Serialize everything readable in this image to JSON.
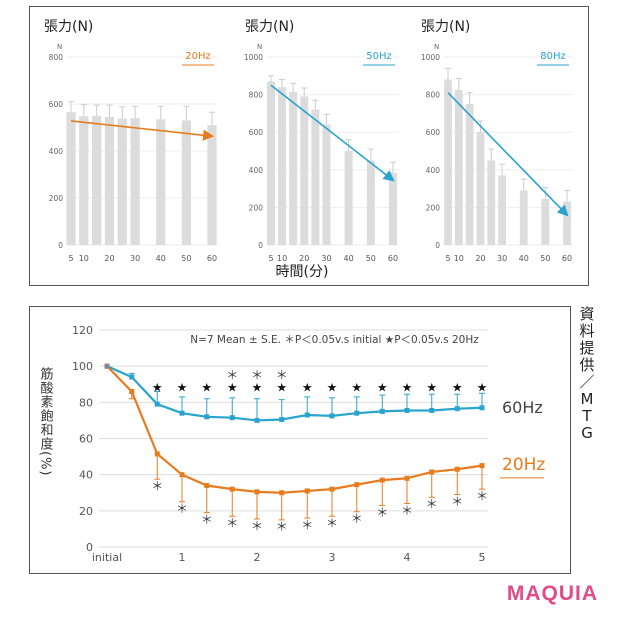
{
  "colors": {
    "orange": "#e87b1e",
    "blue": "#2aa3cf",
    "bar": "#dcdcdc",
    "grid": "#cccccc"
  },
  "top": {
    "xlabel": "時間(分)",
    "panels": [
      {
        "title": "張力(N)",
        "unit": "N",
        "freq": "20Hz",
        "color": "#e87b1e"
      },
      {
        "title": "張力(N)",
        "unit": "N",
        "freq": "50Hz",
        "color": "#2aa3cf"
      },
      {
        "title": "張力(N)",
        "unit": "N",
        "freq": "80Hz",
        "color": "#2aa3cf"
      }
    ]
  },
  "bottom": {
    "legend_note": "N=7  Mean ± S.E.  ＊P＜0.05v.s initial  ★P＜0.05v.s 20Hz",
    "ylabel": "筋酸素飽和度(%)",
    "series_labels": [
      "60Hz",
      "20Hz"
    ]
  },
  "credit": "資料提供／MTG",
  "brand": "MAQUIA",
  "chart_data": [
    {
      "type": "bar",
      "title": "張力(N)",
      "series_label": "20Hz",
      "x": [
        5,
        10,
        15,
        20,
        25,
        30,
        40,
        50,
        60
      ],
      "tick_labels": [
        "5",
        "10",
        "20",
        "30",
        "40",
        "50",
        "60"
      ],
      "tick_values": [
        5,
        10,
        20,
        30,
        40,
        50,
        60
      ],
      "values": [
        565,
        548,
        550,
        545,
        538,
        540,
        535,
        530,
        510
      ],
      "errors": [
        45,
        50,
        45,
        50,
        50,
        50,
        55,
        60,
        55
      ],
      "trend": [
        528,
        463
      ],
      "ylim": [
        0,
        800
      ],
      "yticks": [
        0,
        200,
        400,
        600,
        800
      ]
    },
    {
      "type": "bar",
      "title": "張力(N)",
      "series_label": "50Hz",
      "x": [
        5,
        10,
        15,
        20,
        25,
        30,
        40,
        50,
        60
      ],
      "tick_labels": [
        "5",
        "10",
        "20",
        "30",
        "40",
        "50",
        "60"
      ],
      "tick_values": [
        5,
        10,
        20,
        30,
        40,
        50,
        60
      ],
      "values": [
        870,
        840,
        815,
        790,
        720,
        640,
        500,
        450,
        385
      ],
      "errors": [
        30,
        40,
        45,
        45,
        50,
        55,
        60,
        60,
        55
      ],
      "trend": [
        850,
        345
      ],
      "ylim": [
        0,
        1000
      ],
      "yticks": [
        0,
        200,
        400,
        600,
        800,
        1000
      ]
    },
    {
      "type": "bar",
      "title": "張力(N)",
      "series_label": "80Hz",
      "x": [
        5,
        10,
        15,
        20,
        25,
        30,
        40,
        50,
        60
      ],
      "tick_labels": [
        "5",
        "10",
        "20",
        "30",
        "40",
        "50",
        "60"
      ],
      "tick_values": [
        5,
        10,
        20,
        30,
        40,
        50,
        60
      ],
      "values": [
        880,
        825,
        750,
        600,
        450,
        370,
        290,
        245,
        230
      ],
      "errors": [
        60,
        60,
        60,
        60,
        60,
        60,
        60,
        60,
        60
      ],
      "trend": [
        810,
        160
      ],
      "ylim": [
        0,
        1000
      ],
      "yticks": [
        0,
        200,
        400,
        600,
        800,
        1000
      ]
    },
    {
      "type": "line",
      "xlim": [
        0,
        5
      ],
      "x_tick_labels": [
        "initial",
        "1",
        "2",
        "3",
        "4",
        "5"
      ],
      "x_tick_values": [
        0,
        1,
        2,
        3,
        4,
        5
      ],
      "ylim": [
        0,
        120
      ],
      "yticks": [
        0,
        20,
        40,
        60,
        80,
        100,
        120
      ],
      "x": [
        0,
        0.33,
        0.67,
        1.0,
        1.33,
        1.67,
        2.0,
        2.33,
        2.67,
        3.0,
        3.33,
        3.67,
        4.0,
        4.33,
        4.67,
        5.0
      ],
      "series": [
        {
          "name": "60Hz",
          "color": "#2aa3cf",
          "values": [
            100,
            94,
            79,
            74,
            72,
            71.5,
            70,
            70.5,
            73,
            72.5,
            74,
            75,
            75.5,
            75.5,
            76.5,
            77
          ],
          "errors": [
            0,
            2,
            7,
            9,
            10,
            11,
            12,
            11,
            10,
            10,
            9,
            9,
            9,
            9,
            8,
            8
          ]
        },
        {
          "name": "20Hz",
          "color": "#e87b1e",
          "values": [
            100,
            86,
            51.5,
            40,
            34,
            32,
            30.5,
            30,
            31,
            32,
            34.5,
            37,
            38,
            41.5,
            43,
            45
          ],
          "errors": [
            0,
            4,
            14,
            15,
            15,
            15,
            15,
            15,
            15,
            15,
            15,
            14,
            14,
            14,
            14,
            13
          ]
        }
      ],
      "stars_x": [
        0.67,
        1.0,
        1.33,
        1.67,
        2.0,
        2.33,
        2.67,
        3.0,
        3.33,
        3.67,
        4.0,
        4.33,
        4.67,
        5.0
      ],
      "top_asterisks_x": [
        1.67,
        2.0,
        2.33
      ],
      "bottom_asterisks_x": [
        0.67,
        1.0,
        1.33,
        1.67,
        2.0,
        2.33,
        2.67,
        3.0,
        3.33,
        3.67,
        4.0,
        4.33,
        4.67,
        5.0
      ]
    }
  ]
}
